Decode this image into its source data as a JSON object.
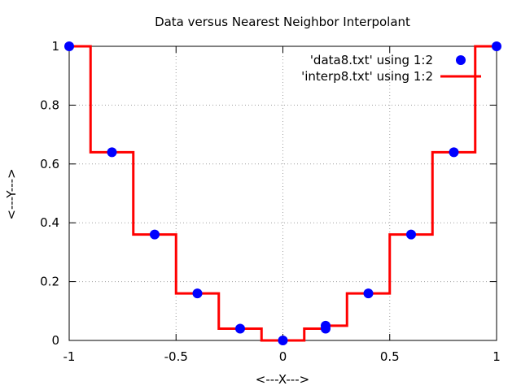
{
  "chart_data": {
    "type": "scatter",
    "title": "Data versus Nearest Neighbor Interpolant",
    "xlabel": "<---X--->",
    "ylabel": "<---Y--->",
    "xlim": [
      -1,
      1
    ],
    "ylim": [
      0,
      1
    ],
    "x_ticks": [
      -1,
      -0.5,
      0,
      0.5,
      1
    ],
    "x_tick_labels": [
      "-1",
      "-0.5",
      "0",
      "0.5",
      "1"
    ],
    "y_ticks": [
      0,
      0.2,
      0.4,
      0.6,
      0.8,
      1
    ],
    "y_tick_labels": [
      "0",
      "0.2",
      "0.4",
      "0.6",
      "0.8",
      "1"
    ],
    "grid": true,
    "legend_position": "top-right",
    "series": [
      {
        "name": "'data8.txt' using 1:2",
        "kind": "points",
        "color": "#0000ff",
        "x": [
          -1,
          -0.8,
          -0.6,
          -0.4,
          -0.2,
          0,
          0.2,
          0.2,
          0.4,
          0.6,
          0.8,
          1
        ],
        "y": [
          1,
          0.64,
          0.36,
          0.16,
          0.04,
          0,
          0.04,
          0.05,
          0.16,
          0.36,
          0.64,
          1
        ]
      },
      {
        "name": "'interp8.txt' using 1:2",
        "kind": "step-line",
        "color": "#ff0000",
        "x": [
          -1,
          -0.9,
          -0.9,
          -0.7,
          -0.7,
          -0.5,
          -0.5,
          -0.3,
          -0.3,
          -0.1,
          -0.1,
          0.1,
          0.1,
          0.2,
          0.2,
          0.3,
          0.3,
          0.5,
          0.5,
          0.7,
          0.7,
          0.9,
          0.9,
          1
        ],
        "y": [
          1,
          1,
          0.64,
          0.64,
          0.36,
          0.36,
          0.16,
          0.16,
          0.04,
          0.04,
          0,
          0,
          0.04,
          0.04,
          0.05,
          0.05,
          0.16,
          0.16,
          0.36,
          0.36,
          0.64,
          0.64,
          1,
          1
        ]
      }
    ]
  }
}
